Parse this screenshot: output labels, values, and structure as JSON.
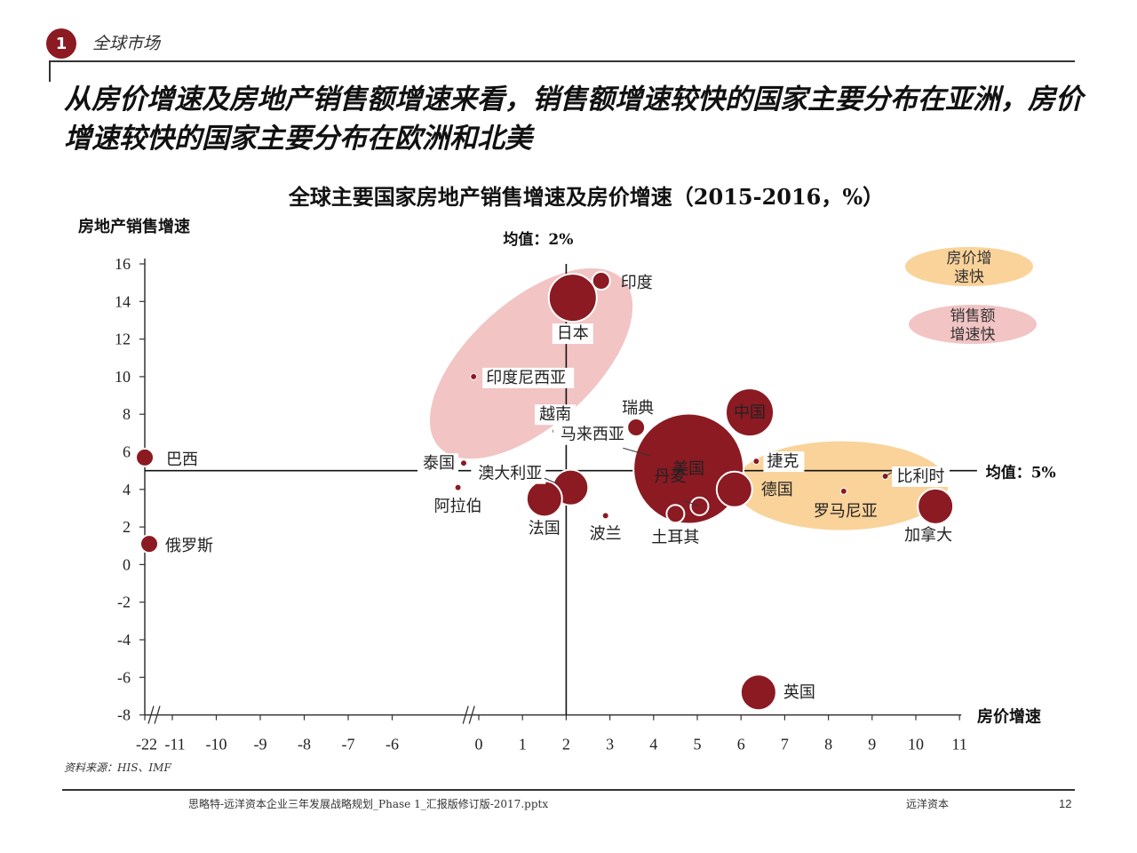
{
  "header": {
    "badge": "1",
    "section": "全球市场",
    "headline": "从房价增速及房地产销售额增速来看，销售额增速较快的国家主要分布在亚洲，房价增速较快的国家主要分布在欧洲和北美"
  },
  "footer": {
    "source": "资料来源：HIS、IMF",
    "file": "思略特-远洋资本企业三年发展战略规划_Phase 1_汇报版修订版-2017.pptx",
    "brand": "远洋资本",
    "page": "12"
  },
  "colors": {
    "bubble": "#8b1a22",
    "sales_zone": "#f2c4c4",
    "price_zone": "#fad39a"
  },
  "chart_data": {
    "type": "scatter",
    "title": "全球主要国家房地产销售增速及房价增速（2015-2016，%）",
    "xlabel": "房价增速",
    "ylabel": "房地产销售增速",
    "x_ticks": [
      "-22",
      "-11",
      "-10",
      "-9",
      "-8",
      "-7",
      "-6",
      "0",
      "1",
      "2",
      "3",
      "4",
      "5",
      "6",
      "7",
      "8",
      "9",
      "10",
      "11"
    ],
    "y_ticks": [
      16,
      14,
      12,
      10,
      8,
      6,
      4,
      2,
      0,
      -2,
      -4,
      -6,
      -8
    ],
    "ylim": [
      -8,
      16
    ],
    "axis_breaks": [
      "-22 to -11",
      "-6 to 0"
    ],
    "mean_lines": {
      "x": 2,
      "x_label": "均值：2%",
      "y": 5,
      "y_label": "均值：5%"
    },
    "legend": [
      {
        "label": "房价增速快",
        "color": "#fad39a"
      },
      {
        "label": "销售额增速快",
        "color": "#f2c4c4"
      }
    ],
    "points": [
      {
        "name": "巴西",
        "x": -22,
        "y": 5.7,
        "size": "small"
      },
      {
        "name": "俄罗斯",
        "x": -21.5,
        "y": 1.1,
        "size": "small"
      },
      {
        "name": "泰国",
        "x": -1,
        "y": 5.4,
        "size": "tiny"
      },
      {
        "name": "阿拉伯",
        "x": -1.4,
        "y": 4.1,
        "size": "tiny"
      },
      {
        "name": "印度",
        "x": 2.8,
        "y": 15.1,
        "size": "small"
      },
      {
        "name": "日本",
        "x": 2.15,
        "y": 14.2,
        "size": "large"
      },
      {
        "name": "印度尼西亚",
        "x": -0.3,
        "y": 10,
        "size": "tiny"
      },
      {
        "name": "越南",
        "x": 1.75,
        "y": 7.1,
        "size": "tiny"
      },
      {
        "name": "瑞典",
        "x": 3.6,
        "y": 7.3,
        "size": "small"
      },
      {
        "name": "马来西亚",
        "x": 3.9,
        "y": 5.8,
        "size": "tiny"
      },
      {
        "name": "澳大利亚",
        "x": 2.1,
        "y": 4.1,
        "size": "medium"
      },
      {
        "name": "法国",
        "x": 1.5,
        "y": 3.5,
        "size": "medium"
      },
      {
        "name": "波兰",
        "x": 2.9,
        "y": 2.6,
        "size": "tiny"
      },
      {
        "name": "美国",
        "x": 4.8,
        "y": 5.1,
        "size": "huge"
      },
      {
        "name": "中国",
        "x": 6.2,
        "y": 8.1,
        "size": "large"
      },
      {
        "name": "捷克",
        "x": 6.35,
        "y": 5.5,
        "size": "tiny"
      },
      {
        "name": "德国",
        "x": 5.85,
        "y": 4,
        "size": "medium"
      },
      {
        "name": "丹麦",
        "x": 5.05,
        "y": 3.1,
        "size": "small"
      },
      {
        "name": "土耳其",
        "x": 4.5,
        "y": 2.7,
        "size": "small"
      },
      {
        "name": "英国",
        "x": 6.4,
        "y": -6.8,
        "size": "medium"
      },
      {
        "name": "罗马尼亚",
        "x": 8.35,
        "y": 3.9,
        "size": "tiny"
      },
      {
        "name": "比利时",
        "x": 9.3,
        "y": 4.7,
        "size": "tiny"
      },
      {
        "name": "加拿大",
        "x": 10.45,
        "y": 3.1,
        "size": "medium"
      }
    ]
  }
}
